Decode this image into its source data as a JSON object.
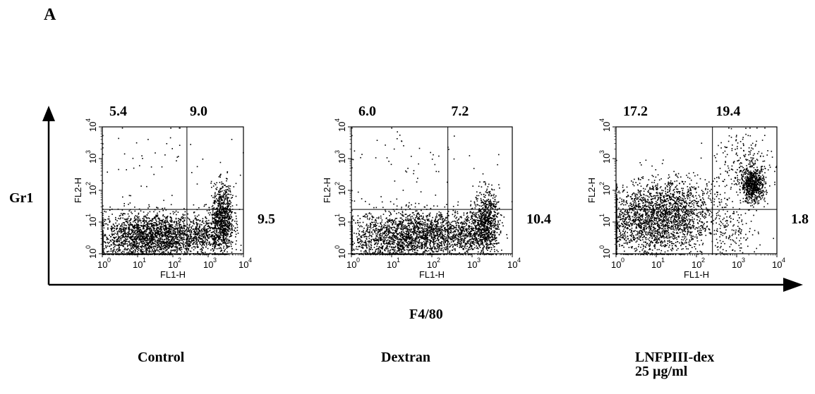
{
  "figure_label": "A",
  "chart_data": {
    "type": "scatter",
    "y_axis_label": "Gr1",
    "x_axis_label": "F4/80",
    "x_scale": "log",
    "y_scale": "log",
    "xlim": [
      1,
      10000
    ],
    "ylim": [
      1,
      10000
    ],
    "panels": [
      {
        "condition_lines": [
          "Control"
        ],
        "xlabel": "FL1-H",
        "ylabel": "FL2-H",
        "gates": {
          "x": 250,
          "y": 25
        },
        "quadrant_percents": {
          "upper_left": "5.4",
          "upper_right": "9.0",
          "lower_right": "9.5"
        },
        "populations": [
          {
            "cx": 12,
            "cy": 3,
            "sx": 0.75,
            "sy": 0.42,
            "n": 1600
          },
          {
            "cx": 60,
            "cy": 4,
            "sx": 0.5,
            "sy": 0.35,
            "n": 700
          },
          {
            "cx": 2500,
            "cy": 12,
            "sx": 0.16,
            "sy": 0.55,
            "n": 900
          },
          {
            "cx": 700,
            "cy": 4,
            "sx": 0.25,
            "sy": 0.35,
            "n": 350
          },
          {
            "cx": 30,
            "cy": 800,
            "sx": 1.0,
            "sy": 0.6,
            "n": 45
          }
        ]
      },
      {
        "condition_lines": [
          "Dextran"
        ],
        "xlabel": "FL1-H",
        "ylabel": "FL2-H",
        "gates": {
          "x": 250,
          "y": 25
        },
        "quadrant_percents": {
          "upper_left": "6.0",
          "upper_right": "7.2",
          "lower_right": "10.4"
        },
        "populations": [
          {
            "cx": 15,
            "cy": 3,
            "sx": 0.75,
            "sy": 0.42,
            "n": 1500
          },
          {
            "cx": 80,
            "cy": 5,
            "sx": 0.5,
            "sy": 0.35,
            "n": 700
          },
          {
            "cx": 2200,
            "cy": 10,
            "sx": 0.16,
            "sy": 0.5,
            "n": 800
          },
          {
            "cx": 700,
            "cy": 4,
            "sx": 0.25,
            "sy": 0.35,
            "n": 400
          },
          {
            "cx": 30,
            "cy": 900,
            "sx": 1.0,
            "sy": 0.6,
            "n": 55
          }
        ]
      },
      {
        "condition_lines": [
          "LNFPIII-dex",
          "25 µg/ml"
        ],
        "xlabel": "FL1-H",
        "ylabel": "FL2-H",
        "gates": {
          "x": 250,
          "y": 25
        },
        "quadrant_percents": {
          "upper_left": "17.2",
          "upper_right": "19.4",
          "lower_right": "1.8"
        },
        "populations": [
          {
            "cx": 8,
            "cy": 10,
            "sx": 0.7,
            "sy": 0.55,
            "n": 1900
          },
          {
            "cx": 30,
            "cy": 40,
            "sx": 0.6,
            "sy": 0.45,
            "n": 600
          },
          {
            "cx": 2500,
            "cy": 150,
            "sx": 0.15,
            "sy": 0.28,
            "n": 700
          },
          {
            "cx": 1500,
            "cy": 800,
            "sx": 0.35,
            "sy": 0.5,
            "n": 200
          },
          {
            "cx": 800,
            "cy": 5,
            "sx": 0.3,
            "sy": 0.4,
            "n": 120
          }
        ]
      }
    ]
  }
}
